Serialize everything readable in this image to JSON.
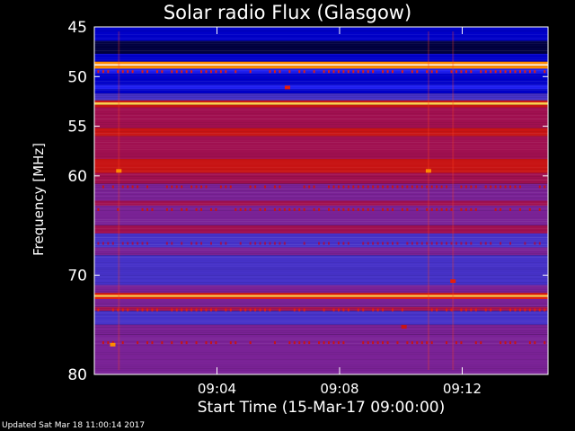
{
  "footer": "Updated Sat Mar 18 11:00:14 2017",
  "chart_data": {
    "type": "heatmap",
    "title": "Solar radio Flux (Glasgow)",
    "xlabel": "Start Time (15-Mar-17 09:00:00)",
    "ylabel": "Frequency [MHz]",
    "x_unit": "minutes after 09:00",
    "xlim": [
      0,
      14.8
    ],
    "ylim": [
      45,
      80
    ],
    "y_inverted": true,
    "x_ticks": [
      {
        "value": 4,
        "label": "09:04"
      },
      {
        "value": 8,
        "label": "09:08"
      },
      {
        "value": 12,
        "label": "09:12"
      }
    ],
    "y_ticks": [
      {
        "value": 45,
        "label": "45"
      },
      {
        "value": 50,
        "label": "50"
      },
      {
        "value": 55,
        "label": "55"
      },
      {
        "value": 60,
        "label": "60"
      },
      {
        "value": 70,
        "label": "70"
      },
      {
        "value": 80,
        "label": "80"
      }
    ],
    "colorscale": [
      "#000040",
      "#0000c8",
      "#1e1ef0",
      "#4632c8",
      "#7a2296",
      "#a01050",
      "#c81414",
      "#e61e0a",
      "#ff8c00",
      "#ffd050",
      "#ffffff"
    ],
    "frequency_bands": [
      {
        "from": 45.0,
        "to": 45.4,
        "level": 1
      },
      {
        "from": 45.4,
        "to": 46.4,
        "level": 1
      },
      {
        "from": 46.4,
        "to": 47.7,
        "level": 0
      },
      {
        "from": 47.7,
        "to": 48.5,
        "level": 1
      },
      {
        "from": 48.5,
        "to": 48.75,
        "level": 8
      },
      {
        "from": 48.75,
        "to": 48.9,
        "level": 10
      },
      {
        "from": 48.9,
        "to": 49.2,
        "level": 8
      },
      {
        "from": 49.2,
        "to": 49.7,
        "level": 2
      },
      {
        "from": 49.7,
        "to": 50.8,
        "level": 1
      },
      {
        "from": 50.8,
        "to": 51.3,
        "level": 2
      },
      {
        "from": 51.3,
        "to": 51.7,
        "level": 1
      },
      {
        "from": 51.7,
        "to": 52.4,
        "level": 3
      },
      {
        "from": 52.4,
        "to": 52.6,
        "level": 6
      },
      {
        "from": 52.6,
        "to": 52.85,
        "level": 9
      },
      {
        "from": 52.85,
        "to": 53.1,
        "level": 6
      },
      {
        "from": 53.1,
        "to": 55.2,
        "level": 5
      },
      {
        "from": 55.2,
        "to": 56.0,
        "level": 6
      },
      {
        "from": 56.0,
        "to": 58.3,
        "level": 5
      },
      {
        "from": 58.3,
        "to": 59.7,
        "level": 6
      },
      {
        "from": 59.7,
        "to": 60.8,
        "level": 5
      },
      {
        "from": 60.8,
        "to": 62.5,
        "level": 4
      },
      {
        "from": 62.5,
        "to": 63.0,
        "level": 5
      },
      {
        "from": 63.0,
        "to": 65.0,
        "level": 4
      },
      {
        "from": 65.0,
        "to": 65.8,
        "level": 5
      },
      {
        "from": 65.8,
        "to": 67.2,
        "level": 3
      },
      {
        "from": 67.2,
        "to": 68.0,
        "level": 4
      },
      {
        "from": 68.0,
        "to": 71.0,
        "level": 3
      },
      {
        "from": 71.0,
        "to": 71.8,
        "level": 4
      },
      {
        "from": 71.8,
        "to": 72.0,
        "level": 7
      },
      {
        "from": 72.0,
        "to": 72.2,
        "level": 9
      },
      {
        "from": 72.2,
        "to": 72.4,
        "level": 7
      },
      {
        "from": 72.4,
        "to": 73.2,
        "level": 4
      },
      {
        "from": 73.2,
        "to": 73.6,
        "level": 5
      },
      {
        "from": 73.6,
        "to": 75.0,
        "level": 3
      },
      {
        "from": 75.0,
        "to": 76.0,
        "level": 4
      },
      {
        "from": 76.0,
        "to": 78.5,
        "level": 4
      },
      {
        "from": 78.5,
        "to": 80.0,
        "level": 4
      }
    ],
    "spotty_lines": [
      {
        "freq": 49.5,
        "level": 7
      },
      {
        "freq": 61.1,
        "level": 6
      },
      {
        "freq": 63.4,
        "level": 6
      },
      {
        "freq": 66.8,
        "level": 5
      },
      {
        "freq": 73.5,
        "level": 7
      },
      {
        "freq": 76.8,
        "level": 6
      }
    ],
    "features": [
      {
        "t": 0.8,
        "f": 59.5,
        "level": 8
      },
      {
        "t": 10.9,
        "f": 59.5,
        "level": 8
      },
      {
        "t": 6.3,
        "f": 51.1,
        "level": 7
      },
      {
        "t": 0.6,
        "f": 77.0,
        "level": 8
      },
      {
        "t": 11.7,
        "f": 70.6,
        "level": 7
      },
      {
        "t": 10.1,
        "f": 75.2,
        "level": 6
      }
    ]
  }
}
